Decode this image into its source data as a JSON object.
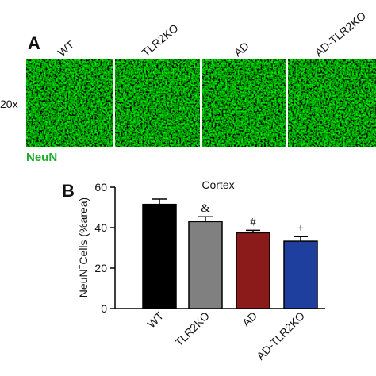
{
  "panel_a": {
    "label": "A",
    "columns": [
      "WT",
      "TLR2KO",
      "AD",
      "AD-TLR2KO"
    ],
    "row_label": "20x",
    "stain_label": "NeuN"
  },
  "chart_data": {
    "type": "bar",
    "panel_label": "B",
    "title": "Cortex",
    "ylabel": {
      "main": "NeuN",
      "sup": "+",
      "rest": "Cells (%area)"
    },
    "categories": [
      "WT",
      "TLR2KO",
      "AD",
      "AD-TLR2KO"
    ],
    "values": [
      51.5,
      43,
      37.5,
      33.3
    ],
    "errors": [
      2.6,
      2.4,
      1.2,
      2.3
    ],
    "colors": [
      "#000000",
      "#808080",
      "#8b1a1a",
      "#1f3f9f"
    ],
    "markers": [
      null,
      "&",
      "#",
      "+"
    ],
    "ylim": [
      0,
      60
    ],
    "yticks": [
      0,
      20,
      40,
      60
    ]
  }
}
